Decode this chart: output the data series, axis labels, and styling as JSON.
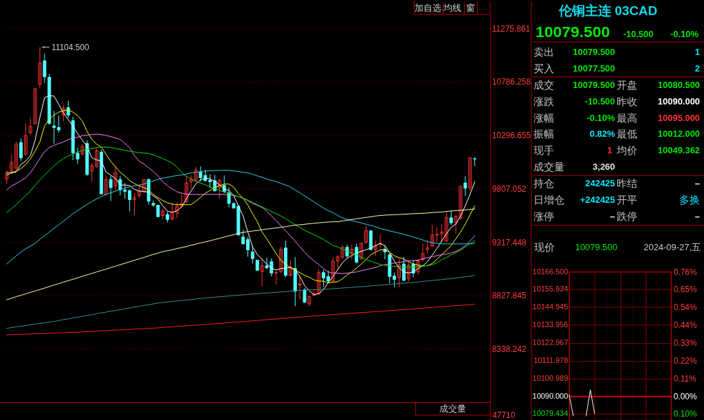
{
  "chart_data": [
    {
      "type": "other",
      "annotations": [
        "加自选",
        "均线",
        "窗"
      ],
      "colors": [
        "#d0d0d0",
        "#d0d0d0",
        "#d0d0d0"
      ]
    },
    {
      "type": "candlestick",
      "categories": [
        null,
        null,
        null,
        null,
        null,
        null,
        null,
        null,
        null,
        null,
        null,
        null,
        null,
        null,
        null,
        null,
        null,
        null,
        null,
        null,
        null,
        null,
        null,
        null,
        null,
        null,
        null,
        null,
        null,
        null,
        null,
        null,
        null,
        null,
        null,
        null,
        null,
        null,
        null,
        null,
        null,
        null,
        null,
        null,
        null,
        null,
        null,
        null,
        null,
        null,
        null,
        null,
        null,
        null,
        null,
        null,
        null,
        null,
        null,
        null,
        null,
        null,
        null,
        null,
        null,
        null,
        null,
        null,
        null,
        null,
        null,
        null,
        null,
        null,
        null,
        null,
        null,
        null,
        null,
        null,
        null,
        null,
        null,
        null,
        null,
        null,
        null,
        null,
        null,
        null,
        null,
        null,
        null,
        null,
        null,
        null,
        null,
        null,
        null,
        null
      ],
      "ohlc": [
        [
          9895,
          9974,
          9849,
          9953
        ],
        [
          9974,
          10121,
          9953,
          10048
        ],
        [
          9995,
          10236,
          9974,
          10215
        ],
        [
          10230,
          10267,
          10058,
          10089
        ],
        [
          10121,
          10403,
          10110,
          10292
        ],
        [
          10320,
          10456,
          10299,
          10378
        ],
        [
          10403,
          10728,
          10393,
          10723
        ],
        [
          10761,
          11104.5,
          10732,
          10962
        ],
        [
          10979,
          11046,
          10776,
          10832
        ],
        [
          10828,
          10857,
          10393,
          10405
        ],
        [
          10382,
          10518,
          10219,
          10368
        ],
        [
          10368,
          10476,
          10320,
          10345
        ],
        [
          10481,
          10575,
          10424,
          10543
        ],
        [
          10550,
          10612,
          10456,
          10481
        ],
        [
          10430,
          10466,
          10068,
          10135
        ],
        [
          10131,
          10184,
          10033,
          10079
        ],
        [
          10125,
          10215,
          10110,
          10194
        ],
        [
          10221,
          10250,
          9922,
          9937
        ],
        [
          9968,
          10041,
          9870,
          10016
        ],
        [
          10010,
          10173,
          9999,
          10152
        ],
        [
          10142,
          10163,
          9755,
          9759
        ],
        [
          9755,
          9922,
          9744,
          9891
        ],
        [
          9891,
          9922,
          9692,
          9817
        ],
        [
          9832,
          10020,
          9790,
          9953
        ],
        [
          9891,
          9922,
          9744,
          9796
        ],
        [
          9796,
          9859,
          9713,
          9782
        ],
        [
          9790,
          9796,
          9598,
          9706
        ],
        [
          9706,
          9765,
          9560,
          9727
        ],
        [
          9744,
          9849,
          9723,
          9786
        ],
        [
          9782,
          9895,
          9765,
          9891
        ],
        [
          9891,
          9901,
          9660,
          9692
        ],
        [
          9671,
          9698,
          9640,
          9656
        ],
        [
          9654,
          9660,
          9545,
          9550
        ],
        [
          9560,
          9623,
          9524,
          9602
        ],
        [
          9570,
          9598,
          9497,
          9524
        ],
        [
          9529,
          9677,
          9514,
          9593
        ],
        [
          9581,
          9681,
          9539,
          9646
        ],
        [
          9644,
          9755,
          9639,
          9667
        ],
        [
          9685,
          9922,
          9677,
          9859
        ],
        [
          9870,
          9928,
          9811,
          9895
        ],
        [
          9884,
          10006,
          9870,
          9978
        ],
        [
          9957,
          10010,
          9870,
          9907
        ],
        [
          9928,
          9978,
          9870,
          9880
        ],
        [
          9884,
          9939,
          9811,
          9870
        ],
        [
          9880,
          9932,
          9782,
          9786
        ],
        [
          9817,
          9895,
          9717,
          9884
        ],
        [
          9838,
          9928,
          9765,
          9782
        ],
        [
          9769,
          9817,
          9635,
          9671
        ],
        [
          9671,
          9681,
          9623,
          9629
        ],
        [
          9646,
          9656,
          9378,
          9382
        ],
        [
          9363,
          9430,
          9294,
          9301
        ],
        [
          9340,
          9363,
          9183,
          9246
        ],
        [
          9225,
          9284,
          9121,
          9165
        ],
        [
          9152,
          9154,
          9054,
          9058
        ],
        [
          9047,
          9169,
          8911,
          9100
        ],
        [
          9100,
          9175,
          9075,
          9079
        ],
        [
          9137,
          9169,
          9001,
          9033
        ],
        [
          9033,
          9064,
          8928,
          9037
        ],
        [
          9047,
          9273,
          9033,
          9248
        ],
        [
          9263,
          9330,
          8995,
          9012
        ],
        [
          9012,
          9148,
          9001,
          9089
        ],
        [
          9075,
          9179,
          8729,
          8865
        ],
        [
          8924,
          9001,
          8792,
          8932
        ],
        [
          8880,
          8897,
          8757,
          8765
        ],
        [
          8750,
          8828,
          8729,
          8817
        ],
        [
          8828,
          8876,
          8823,
          8844
        ],
        [
          8844,
          9068,
          8834,
          9037
        ],
        [
          9037,
          9064,
          8907,
          8987
        ],
        [
          9001,
          9054,
          8939,
          8959
        ],
        [
          8959,
          9183,
          8953,
          9141
        ],
        [
          9144,
          9194,
          9064,
          9185
        ],
        [
          9179,
          9290,
          9162,
          9269
        ],
        [
          9269,
          9294,
          9169,
          9190
        ],
        [
          9211,
          9294,
          9162,
          9252
        ],
        [
          9269,
          9301,
          9121,
          9133
        ],
        [
          9162,
          9309,
          9158,
          9305
        ],
        [
          9315,
          9466,
          9301,
          9424
        ],
        [
          9420,
          9426,
          9242,
          9248
        ],
        [
          9248,
          9330,
          9190,
          9280
        ],
        [
          9294,
          9388,
          9263,
          9305
        ],
        [
          9252,
          9284,
          9158,
          9227
        ],
        [
          9200,
          9211,
          8939,
          9001
        ],
        [
          9005,
          9037,
          8903,
          8974
        ],
        [
          8991,
          9169,
          8903,
          9106
        ],
        [
          9116,
          9179,
          8959,
          8966
        ],
        [
          8980,
          9137,
          8953,
          9106
        ],
        [
          9116,
          9148,
          8995,
          9033
        ],
        [
          9043,
          9158,
          9016,
          9144
        ],
        [
          9158,
          9301,
          9137,
          9211
        ],
        [
          9248,
          9336,
          9211,
          9263
        ],
        [
          9280,
          9476,
          9274,
          9382
        ],
        [
          9382,
          9451,
          9315,
          9388
        ],
        [
          9393,
          9483,
          9315,
          9409
        ],
        [
          9326,
          9598,
          9315,
          9545
        ],
        [
          9539,
          9608,
          9476,
          9493
        ],
        [
          9497,
          9566,
          9393,
          9552
        ],
        [
          9535,
          9832,
          9524,
          9828
        ],
        [
          9859,
          9922,
          9740,
          9811
        ],
        [
          9817,
          10096,
          9790,
          10090
        ],
        [
          10080.5,
          10095,
          10012,
          10079.5
        ]
      ],
      "colors": [
        "#ff3232",
        "#ff3232",
        "#ff3232",
        "#54ffff",
        "#ff3232",
        "#ff3232",
        "#ff3232",
        "#ff3232",
        "#54ffff",
        "#54ffff",
        "#54ffff",
        "#54ffff",
        "#ff3232",
        "#54ffff",
        "#54ffff",
        "#54ffff",
        "#ff3232",
        "#54ffff",
        "#ff3232",
        "#ff3232",
        "#54ffff",
        "#ff3232",
        "#54ffff",
        "#ff3232",
        "#54ffff",
        "#54ffff",
        "#54ffff",
        "#ff3232",
        "#ff3232",
        "#ff3232",
        "#54ffff",
        "#54ffff",
        "#54ffff",
        "#ff3232",
        "#54ffff",
        "#ff3232",
        "#ff3232",
        "#ff3232",
        "#ff3232",
        "#ff3232",
        "#ff3232",
        "#54ffff",
        "#54ffff",
        "#54ffff",
        "#54ffff",
        "#ff3232",
        "#54ffff",
        "#54ffff",
        "#54ffff",
        "#54ffff",
        "#54ffff",
        "#54ffff",
        "#54ffff",
        "#54ffff",
        "#ff3232",
        "#54ffff",
        "#54ffff",
        "#ff3232",
        "#ff3232",
        "#54ffff",
        "#ff3232",
        "#54ffff",
        "#ff3232",
        "#54ffff",
        "#ff3232",
        "#ff3232",
        "#ff3232",
        "#54ffff",
        "#54ffff",
        "#ff3232",
        "#ff3232",
        "#ff3232",
        "#54ffff",
        "#ff3232",
        "#54ffff",
        "#ff3232",
        "#ff3232",
        "#54ffff",
        "#ff3232",
        "#ff3232",
        "#54ffff",
        "#54ffff",
        "#54ffff",
        "#ff3232",
        "#54ffff",
        "#ff3232",
        "#54ffff",
        "#ff3232",
        "#ff3232",
        "#ff3232",
        "#ff3232",
        "#ff3232",
        "#ff3232",
        "#ff3232",
        "#54ffff",
        "#ff3232",
        "#ff3232",
        "#54ffff",
        "#ff3232",
        "#54ffff"
      ],
      "series": [
        {
          "type": "line",
          "color": "#ffffff",
          "values": [
            9932,
            9950,
            9960,
            10030,
            10060,
            10110,
            10250,
            10460,
            10640,
            10660,
            10655,
            10580,
            10500,
            10440,
            10380,
            10310,
            10250,
            10195,
            10090,
            10070,
            10060,
            9960,
            9930,
            9900,
            9840,
            9840,
            9835,
            9800,
            9785,
            9780,
            9775,
            9740,
            9710,
            9650,
            9600,
            9590,
            9605,
            9639,
            9713,
            9786,
            9849,
            9890,
            9901,
            9897,
            9874,
            9842,
            9803,
            9790,
            9744,
            9650,
            9556,
            9409,
            9273,
            9204,
            9158,
            9116,
            9079,
            9062,
            9074,
            9079,
            9083,
            9064,
            9001,
            8918,
            8869,
            8834,
            8844,
            8882,
            8945,
            9000,
            9064,
            9127,
            9169,
            9194,
            9215,
            9232,
            9246,
            9263,
            9284,
            9305,
            9284,
            9221,
            9141,
            9079,
            9043,
            9033,
            9043,
            9074,
            9100,
            9137,
            9196,
            9259,
            9326,
            9393,
            9451,
            9482,
            9556,
            9650,
            9754,
            9870
          ]
        },
        {
          "type": "line",
          "color": "#ffff00",
          "values": [
            9953,
            9957,
            9966,
            9991,
            10027,
            10079,
            10152,
            10236,
            10382,
            10445,
            10481,
            10508,
            10522,
            10529,
            10508,
            10476,
            10424,
            10330,
            10257,
            10215,
            10188,
            10121,
            10058,
            10006,
            9957,
            9922,
            9880,
            9853,
            9832,
            9817,
            9796,
            9754,
            9723,
            9698,
            9677,
            9665,
            9660,
            9662,
            9660,
            9660,
            9692,
            9727,
            9765,
            9790,
            9817,
            9834,
            9849,
            9849,
            9821,
            9761,
            9719,
            9656,
            9577,
            9503,
            9409,
            9346,
            9279,
            9210,
            9148,
            9112,
            9085,
            9058,
            9037,
            9012,
            8995,
            8970,
            8959,
            8959,
            8943,
            8949,
            8953,
            8980,
            9016,
            9043,
            9079,
            9116,
            9158,
            9200,
            9225,
            9246,
            9250,
            9221,
            9190,
            9175,
            9162,
            9137,
            9116,
            9106,
            9100,
            9100,
            9121,
            9158,
            9200,
            9242,
            9284,
            9346,
            9409,
            9482,
            9566,
            9650
          ]
        },
        {
          "type": "line",
          "color": "#ff80ff",
          "values": [
            9796,
            9832,
            9853,
            9880,
            9907,
            9953,
            10016,
            10083,
            10146,
            10184,
            10204,
            10221,
            10236,
            10257,
            10271,
            10278,
            10292,
            10298,
            10303,
            10307,
            10303,
            10294,
            10284,
            10271,
            10257,
            10221,
            10183,
            10110,
            10058,
            10033,
            9999,
            9964,
            9922,
            9870,
            9835,
            9805,
            9778,
            9765,
            9757,
            9754,
            9754,
            9754,
            9754,
            9754,
            9754,
            9754,
            9754,
            9752,
            9744,
            9734,
            9717,
            9698,
            9671,
            9654,
            9635,
            9602,
            9555,
            9514,
            9465,
            9420,
            9375,
            9325,
            9275,
            9225,
            9180,
            9145,
            9110,
            9075,
            9043,
            9033,
            9033,
            9028,
            9033,
            9037,
            9043,
            9054,
            9064,
            9074,
            9085,
            9100,
            9110,
            9116,
            9125,
            9131,
            9137,
            9144,
            9148,
            9152,
            9162,
            9175,
            9183,
            9192,
            9200,
            9208,
            9217,
            9231,
            9252,
            9284,
            9326,
            9372
          ]
        },
        {
          "type": "line",
          "color": "#00e000",
          "values": [
            9587,
            9623,
            9660,
            9702,
            9744,
            9786,
            9838,
            9886,
            9932,
            9974,
            10016,
            10054,
            10083,
            10106,
            10125,
            10142,
            10156,
            10167,
            10175,
            10183,
            10188,
            10188,
            10183,
            10175,
            10167,
            10158,
            10150,
            10144,
            10137,
            10133,
            10129,
            10117,
            10100,
            10083,
            10064,
            10041,
            10006,
            9953,
            9922,
            9895,
            9874,
            9857,
            9842,
            9823,
            9807,
            9790,
            9775,
            9765,
            9750,
            9734,
            9719,
            9702,
            9681,
            9660,
            9639,
            9618,
            9598,
            9577,
            9556,
            9531,
            9503,
            9476,
            9451,
            9426,
            9405,
            9384,
            9363,
            9342,
            9315,
            9284,
            9273,
            9252,
            9233,
            9217,
            9200,
            9179,
            9156,
            9141,
            9125,
            9112,
            9104,
            9100,
            9095,
            9091,
            9089,
            9085,
            9087,
            9093,
            9097,
            9102,
            9110,
            9127,
            9154,
            9175,
            9200,
            9221,
            9242,
            9273,
            9300,
            9330
          ]
        },
        {
          "type": "line",
          "color": "#2ad4f0",
          "values": [
            9115,
            9155,
            9190,
            9225,
            9255,
            9280,
            9305,
            9342,
            9376,
            9409,
            9443,
            9476,
            9510,
            9543,
            9577,
            9606,
            9635,
            9662,
            9688,
            9713,
            9734,
            9754,
            9769,
            9784,
            9798,
            9813,
            9824,
            9832,
            9838,
            9849,
            9865,
            9878,
            9891,
            9903,
            9911,
            9920,
            9926,
            9932,
            9941,
            9951,
            9957,
            9964,
            9968,
            9970,
            9972,
            9974,
            9974,
            9974,
            9970,
            9964,
            9957,
            9951,
            9939,
            9924,
            9911,
            9895,
            9882,
            9870,
            9855,
            9840,
            9821,
            9794,
            9769,
            9740,
            9713,
            9685,
            9656,
            9629,
            9604,
            9587,
            9562,
            9539,
            9524,
            9514,
            9503,
            9493,
            9480,
            9470,
            9457,
            9443,
            9430,
            9420,
            9409,
            9399,
            9388,
            9376,
            9363,
            9351,
            9336,
            9321,
            9311,
            9305,
            9300,
            9300,
            9300,
            9300,
            9300,
            9300,
            9302,
            9305
          ]
        },
        {
          "type": "line",
          "color": "#ffffb4",
          "values": [
            8789,
            8802,
            8816,
            8829,
            8842,
            8856,
            8869,
            8882,
            8895,
            8909,
            8923,
            8936,
            8950,
            8963,
            8976,
            8989,
            9003,
            9016,
            9029,
            9043,
            9056,
            9069,
            9083,
            9096,
            9110,
            9123,
            9136,
            9150,
            9163,
            9176,
            9190,
            9203,
            9216,
            9229,
            9238,
            9246,
            9257,
            9267,
            9275,
            9288,
            9298,
            9309,
            9319,
            9330,
            9340,
            9351,
            9363,
            9374,
            9384,
            9397,
            9405,
            9413,
            9418,
            9424,
            9430,
            9436,
            9441,
            9447,
            9453,
            9459,
            9466,
            9472,
            9476,
            9480,
            9485,
            9489,
            9493,
            9497,
            9501,
            9503,
            9503,
            9510,
            9518,
            9524,
            9531,
            9537,
            9543,
            9549,
            9556,
            9560,
            9564,
            9566,
            9568,
            9570,
            9572,
            9575,
            9577,
            9579,
            9581,
            9583,
            9587,
            9591,
            9593,
            9598,
            9602,
            9606,
            9608,
            9612,
            9616,
            9621
          ]
        },
        {
          "type": "line",
          "color": "#3e8e8e",
          "values": [
            8526,
            8533,
            8540,
            8546,
            8552,
            8558,
            8565,
            8571,
            8577,
            8582,
            8590,
            8597,
            8606,
            8613,
            8621,
            8628,
            8636,
            8644,
            8651,
            8660,
            8668,
            8675,
            8683,
            8690,
            8698,
            8705,
            8713,
            8721,
            8728,
            8736,
            8742,
            8750,
            8758,
            8764,
            8769,
            8773,
            8778,
            8782,
            8786,
            8791,
            8795,
            8800,
            8804,
            8808,
            8812,
            8815,
            8819,
            8823,
            8827,
            8830,
            8833,
            8837,
            8841,
            8844,
            8847,
            8850,
            8853,
            8857,
            8860,
            8863,
            8867,
            8870,
            8874,
            8876,
            8879,
            8881,
            8882,
            8884,
            8886,
            8889,
            8892,
            8896,
            8899,
            8902,
            8905,
            8908,
            8911,
            8915,
            8918,
            8922,
            8926,
            8929,
            8933,
            8936,
            8940,
            8943,
            8947,
            8951,
            8956,
            8960,
            8965,
            8969,
            8973,
            8978,
            8982,
            8987,
            8993,
            8999,
            9005,
            9012
          ]
        },
        {
          "type": "line",
          "color": "#ff2020",
          "values": [
            8466,
            8467,
            8469,
            8471,
            8472,
            8474,
            8476,
            8478,
            8479,
            8481,
            8483,
            8485,
            8486,
            8488,
            8490,
            8491,
            8493,
            8496,
            8498,
            8500,
            8503,
            8505,
            8507,
            8510,
            8512,
            8514,
            8516,
            8519,
            8521,
            8523,
            8526,
            8528,
            8530,
            8533,
            8537,
            8540,
            8543,
            8546,
            8549,
            8553,
            8556,
            8559,
            8562,
            8565,
            8568,
            8572,
            8575,
            8578,
            8581,
            8584,
            8588,
            8591,
            8595,
            8598,
            8602,
            8605,
            8609,
            8612,
            8616,
            8619,
            8623,
            8626,
            8630,
            8633,
            8637,
            8640,
            8643,
            8646,
            8649,
            8652,
            8655,
            8658,
            8661,
            8664,
            8667,
            8670,
            8673,
            8676,
            8679,
            8682,
            8685,
            8688,
            8691,
            8695,
            8698,
            8701,
            8704,
            8708,
            8711,
            8714,
            8717,
            8721,
            8724,
            8727,
            8730,
            8734,
            8737,
            8740,
            8743,
            8747
          ]
        }
      ],
      "ylim": [
        7850,
        11397
      ],
      "yticks": [
        11275.861,
        10786.258,
        10296.655,
        9807.052,
        9317.448,
        8827.845,
        8338.242
      ],
      "grid": "y",
      "tick_labels": "y",
      "annotations": [
        "11104.500"
      ]
    },
    {
      "type": "other",
      "annotations": [
        "成交量",
        "47710"
      ],
      "colors": [
        "#c8c8c8",
        "#ff3c3c"
      ]
    },
    {
      "type": "other",
      "annotations": [
        "伦铜主连 03CAD",
        "10079.500",
        "-10.500",
        "-0.10%",
        "卖出",
        "10079.500",
        "1",
        "买入",
        "10077.500",
        "2",
        "成交",
        "10079.500",
        "开盘",
        "10080.500",
        "涨跌",
        "-10.500",
        "昨收",
        "10090.000",
        "涨幅",
        "-0.10%",
        "最高",
        "10095.000",
        "振幅",
        "0.82%",
        "最低",
        "10012.000",
        "现手",
        "1",
        "均价",
        "10049.362",
        "成交量",
        "3,260",
        "持仓",
        "242425",
        "昨结",
        "–",
        "日增仓",
        "+242425",
        "开平",
        "多换",
        "涨停",
        "–",
        "跌停",
        "–",
        "现价",
        "10079.500",
        "2024-09-27,五"
      ],
      "colors": [
        "#10d8e8",
        "#00e600",
        "#00e600",
        "#00e600",
        "#c0c0c0",
        "#00e600",
        "#00e8ff",
        "#c0c0c0",
        "#00e600",
        "#00e8ff",
        "#c0c0c0",
        "#00e600",
        "#c0c0c0",
        "#00e600",
        "#c0c0c0",
        "#00e600",
        "#c0c0c0",
        "#ffffff",
        "#c0c0c0",
        "#00e600",
        "#c0c0c0",
        "#ff3232",
        "#c0c0c0",
        "#00e8ff",
        "#c0c0c0",
        "#00e600",
        "#c0c0c0",
        "#ff3232",
        "#c0c0c0",
        "#00e600",
        "#c0c0c0",
        "#e0e0e0",
        "#c0c0c0",
        "#00e8ff",
        "#c0c0c0",
        "#ffffff",
        "#c0c0c0",
        "#00e8ff",
        "#c0c0c0",
        "#00e8ff",
        "#c0c0c0",
        "#ffffff",
        "#c0c0c0",
        "#ffffff",
        "#c0c0c0",
        "#00e600",
        "#c8c8c8"
      ]
    },
    {
      "type": "line",
      "categories": [
        null,
        null,
        null,
        null,
        null,
        null,
        null,
        null,
        null,
        null,
        null,
        null,
        null,
        null,
        null,
        null,
        null,
        null,
        null,
        null,
        null,
        null,
        null,
        null,
        null
      ],
      "series": [
        {
          "color": "#ffffff",
          "values": [
            10091,
            10078,
            null,
            null,
            10078,
            10094,
            10079.5,
            null,
            null,
            null,
            null,
            null,
            null,
            null,
            null,
            null,
            null,
            null,
            null,
            null,
            null,
            null,
            null,
            null,
            null
          ]
        }
      ],
      "ylim": [
        10075.6,
        10167
      ],
      "yticks": [
        {
          "value": 10166.5,
          "label": "10166.500"
        },
        {
          "value": 10155.934,
          "label": "10155.934"
        },
        {
          "value": 10144.945,
          "label": "10144.945"
        },
        {
          "value": 10133.956,
          "label": "10133.956"
        },
        {
          "value": 10122.967,
          "label": "10122.967"
        },
        {
          "value": 10111.978,
          "label": "10111.978"
        },
        {
          "value": 10100.989,
          "label": "10100.989"
        },
        {
          "value": 10090,
          "label": "10090.000"
        },
        {
          "value": 10079.434,
          "label": "10079.434"
        }
      ],
      "y2lim": [
        -0.143,
        0.763
      ],
      "y2ticks": [
        {
          "value": 0.7582,
          "label": "0.76%"
        },
        {
          "value": 0.6535,
          "label": "0.65%"
        },
        {
          "value": 0.5446,
          "label": "0.54%"
        },
        {
          "value": 0.4356,
          "label": "0.44%"
        },
        {
          "value": 0.3267,
          "label": "0.33%"
        },
        {
          "value": 0.2178,
          "label": "0.22%"
        },
        {
          "value": 0.1089,
          "label": "0.11%"
        },
        {
          "value": 0,
          "label": "0.00%"
        },
        {
          "value": -0.1047,
          "label": "0.10%"
        }
      ],
      "ref_lines": [
        {
          "axis": "y",
          "value": 10090,
          "color": "#c00000"
        }
      ],
      "grid": true,
      "tick_labels": "y"
    }
  ]
}
